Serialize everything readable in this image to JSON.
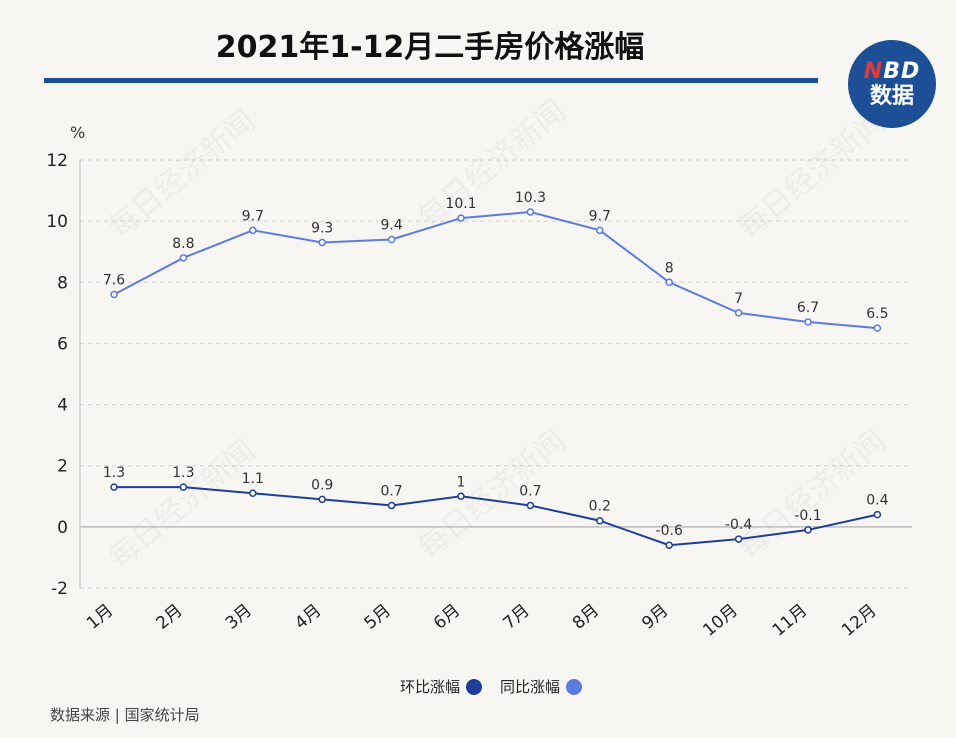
{
  "header": {
    "title": "2021年1-12月二手房价格涨幅",
    "logo_line1_accent": "N",
    "logo_line1_rest": "BD",
    "logo_line2": "数据"
  },
  "watermark_text": "每日经济新闻",
  "source": "数据来源 | 国家统计局",
  "colors": {
    "mom": "#1f3e9c",
    "yoy": "#5c7be0",
    "brand": "#1c4f96",
    "accent": "#e0393e"
  },
  "chart_data": {
    "type": "line",
    "ylabel": "%",
    "ylim": [
      -2,
      12
    ],
    "yticks": [
      -2,
      0,
      2,
      4,
      6,
      8,
      10,
      12
    ],
    "grid": true,
    "legend_position": "bottom-center",
    "categories": [
      "1月",
      "2月",
      "3月",
      "4月",
      "5月",
      "6月",
      "7月",
      "8月",
      "9月",
      "10月",
      "11月",
      "12月"
    ],
    "series": [
      {
        "name": "同比涨幅",
        "labels": [
          "7.6",
          "8.8",
          "9.7",
          "9.3",
          "9.4",
          "10.1",
          "10.3",
          "9.7",
          "8",
          "7",
          "6.7",
          "6.5"
        ],
        "values": [
          7.6,
          8.8,
          9.7,
          9.3,
          9.4,
          10.1,
          10.3,
          9.7,
          8,
          7,
          6.7,
          6.5
        ]
      },
      {
        "name": "环比涨幅",
        "labels": [
          "1.3",
          "1.3",
          "1.1",
          "0.9",
          "0.7",
          "1",
          "0.7",
          "0.2",
          "-0.6",
          "-0.4",
          "-0.1",
          "0.4"
        ],
        "values": [
          1.3,
          1.3,
          1.1,
          0.9,
          0.7,
          1,
          0.7,
          0.2,
          -0.6,
          -0.4,
          -0.1,
          0.4
        ]
      }
    ]
  }
}
